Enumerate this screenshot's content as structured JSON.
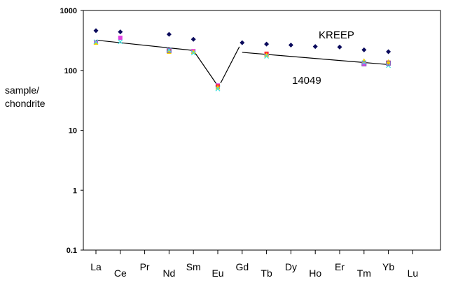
{
  "chart_data": {
    "type": "scatter",
    "y_scale": "log",
    "ylim": [
      0.1,
      1000
    ],
    "ytick_labels": [
      "1000",
      "100",
      "10",
      "1",
      "0.1"
    ],
    "ytick_values": [
      1000,
      100,
      10,
      1,
      0.1
    ],
    "ylabel_line1": "sample/",
    "ylabel_line2": "chondrite",
    "categories": [
      "La",
      "Ce",
      "Pr",
      "Nd",
      "Sm",
      "Eu",
      "Gd",
      "Tb",
      "Dy",
      "Ho",
      "Er",
      "Tm",
      "Yb",
      "Lu"
    ],
    "grid": false,
    "annotations": {
      "kreep": "KREEP",
      "sample": "14049"
    },
    "series": [
      {
        "marker": "diamond",
        "color": "#0a0a5c",
        "points": [
          [
            "La",
            460
          ],
          [
            "Ce",
            440
          ],
          [
            "Nd",
            400
          ],
          [
            "Sm",
            330
          ],
          [
            "Eu",
            55
          ],
          [
            "Gd",
            290
          ],
          [
            "Tb",
            275
          ],
          [
            "Dy",
            265
          ],
          [
            "Ho",
            250
          ],
          [
            "Er",
            245
          ],
          [
            "Tm",
            220
          ],
          [
            "Yb",
            205
          ]
        ]
      },
      {
        "marker": "square",
        "color": "#e040e0",
        "points": [
          [
            "La",
            295
          ],
          [
            "Ce",
            350
          ],
          [
            "Nd",
            215
          ],
          [
            "Sm",
            210
          ],
          [
            "Eu",
            56
          ],
          [
            "Tb",
            185
          ],
          [
            "Tm",
            130
          ],
          [
            "Yb",
            130
          ]
        ]
      },
      {
        "marker": "square",
        "color": "#ff3030",
        "points": [
          [
            "Nd",
            210
          ],
          [
            "Eu",
            54
          ],
          [
            "Tb",
            190
          ],
          [
            "Yb",
            135
          ]
        ]
      },
      {
        "marker": "triangle",
        "color": "#f0d000",
        "points": [
          [
            "La",
            290
          ],
          [
            "Nd",
            205
          ],
          [
            "Sm",
            205
          ],
          [
            "Eu",
            52
          ],
          [
            "Tb",
            180
          ],
          [
            "Tm",
            145
          ],
          [
            "Yb",
            140
          ]
        ]
      },
      {
        "marker": "x",
        "color": "#40e0e0",
        "points": [
          [
            "La",
            300
          ],
          [
            "Ce",
            300
          ],
          [
            "Nd",
            220
          ],
          [
            "Sm",
            195
          ],
          [
            "Eu",
            49
          ],
          [
            "Tb",
            172
          ],
          [
            "Tm",
            135
          ],
          [
            "Yb",
            120
          ]
        ]
      },
      {
        "marker": "square-open",
        "color": "#8060c0",
        "points": [
          [
            "Nd",
            215
          ],
          [
            "Tm",
            128
          ],
          [
            "Yb",
            132
          ]
        ]
      }
    ],
    "trend_line": [
      [
        "La",
        320
      ],
      [
        "Sm",
        215
      ],
      [
        "Eu",
        55
      ],
      [
        "Gd",
        200
      ],
      [
        "Yb",
        125
      ]
    ]
  }
}
